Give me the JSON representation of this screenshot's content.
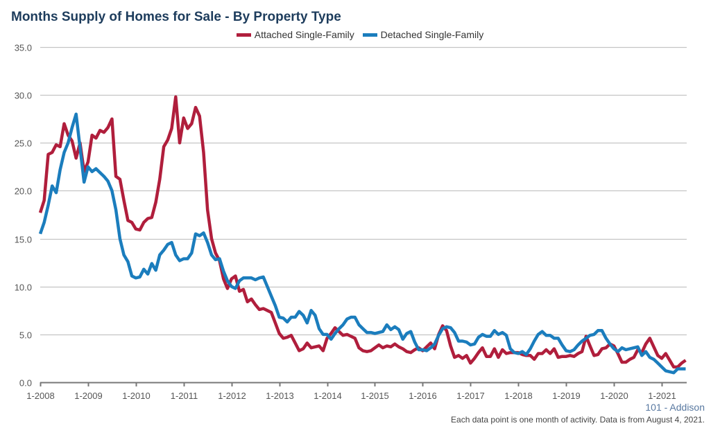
{
  "chart_data": {
    "type": "line",
    "title": "Months Supply of Homes for Sale - By Property Type",
    "x_start": "1-2008",
    "x_end": "7-2021",
    "x_frequency": "monthly",
    "xticks": [
      "1-2008",
      "1-2009",
      "1-2010",
      "1-2011",
      "1-2012",
      "1-2013",
      "1-2014",
      "1-2015",
      "1-2016",
      "1-2017",
      "1-2018",
      "1-2019",
      "1-2020",
      "1-2021"
    ],
    "yticks": [
      "0.0",
      "5.0",
      "10.0",
      "15.0",
      "20.0",
      "25.0",
      "30.0",
      "35.0"
    ],
    "ylim": [
      0,
      35
    ],
    "grid": true,
    "legend_position": "top-center",
    "series": [
      {
        "name": "Attached Single-Family",
        "color": "#b01e3c",
        "values": [
          17.7,
          19.0,
          23.8,
          24.0,
          24.8,
          24.6,
          27.0,
          25.8,
          25.2,
          23.4,
          25.0,
          22.0,
          23.0,
          25.8,
          25.5,
          26.3,
          26.1,
          26.6,
          27.5,
          21.5,
          21.2,
          19.0,
          16.9,
          16.7,
          16.0,
          15.9,
          16.7,
          17.1,
          17.2,
          18.8,
          21.2,
          24.6,
          25.3,
          26.5,
          29.8,
          25.0,
          27.6,
          26.5,
          27.0,
          28.7,
          27.8,
          24.0,
          18.0,
          15.0,
          13.5,
          12.7,
          10.8,
          9.8,
          10.8,
          11.1,
          9.5,
          9.7,
          8.4,
          8.7,
          8.1,
          7.6,
          7.7,
          7.5,
          7.3,
          6.2,
          5.1,
          4.6,
          4.7,
          4.9,
          4.1,
          3.3,
          3.5,
          4.1,
          3.6,
          3.7,
          3.8,
          3.3,
          4.6,
          5.1,
          5.7,
          5.3,
          4.9,
          5.0,
          4.8,
          4.6,
          3.6,
          3.3,
          3.2,
          3.3,
          3.6,
          3.9,
          3.6,
          3.8,
          3.7,
          4.0,
          3.7,
          3.5,
          3.2,
          3.1,
          3.4,
          3.6,
          3.3,
          3.7,
          4.1,
          3.5,
          5.0,
          5.9,
          5.4,
          3.8,
          2.6,
          2.8,
          2.5,
          2.8,
          2.0,
          2.5,
          3.1,
          3.6,
          2.7,
          2.7,
          3.5,
          2.6,
          3.4,
          3.0,
          3.1,
          3.1,
          3.1,
          2.9,
          2.8,
          2.8,
          2.4,
          3.0,
          3.0,
          3.4,
          3.0,
          3.5,
          2.6,
          2.7,
          2.7,
          2.8,
          2.7,
          3.0,
          3.2,
          4.8,
          3.8,
          2.8,
          2.9,
          3.5,
          3.6,
          4.0,
          3.8,
          3.0,
          2.1,
          2.1,
          2.4,
          2.6,
          3.4,
          3.1,
          4.0,
          4.6,
          3.7,
          2.8,
          2.5,
          3.0,
          2.3,
          1.6,
          1.6,
          2.0,
          2.3
        ]
      },
      {
        "name": "Detached Single-Family",
        "color": "#1b7dbd",
        "values": [
          15.5,
          16.7,
          18.5,
          20.5,
          19.8,
          22.2,
          24.0,
          25.0,
          26.6,
          28.0,
          24.5,
          20.9,
          22.5,
          22.0,
          22.3,
          21.9,
          21.5,
          21.0,
          20.0,
          18.0,
          15.0,
          13.3,
          12.6,
          11.1,
          10.9,
          11.0,
          11.8,
          11.3,
          12.4,
          11.7,
          13.3,
          13.8,
          14.4,
          14.6,
          13.3,
          12.7,
          12.9,
          12.9,
          13.5,
          15.5,
          15.3,
          15.6,
          14.6,
          13.3,
          12.8,
          12.9,
          11.6,
          10.6,
          10.0,
          9.8,
          10.6,
          10.9,
          10.9,
          10.9,
          10.7,
          10.9,
          11.0,
          10.0,
          9.0,
          8.0,
          6.8,
          6.7,
          6.3,
          6.8,
          6.8,
          7.4,
          7.0,
          6.2,
          7.5,
          7.0,
          5.6,
          5.0,
          5.0,
          4.5,
          5.1,
          5.6,
          6.0,
          6.6,
          6.8,
          6.8,
          6.0,
          5.6,
          5.2,
          5.2,
          5.1,
          5.2,
          5.3,
          6.0,
          5.5,
          5.8,
          5.5,
          4.5,
          5.1,
          5.3,
          4.2,
          3.4,
          3.4,
          3.3,
          3.6,
          4.0,
          4.9,
          5.6,
          5.8,
          5.7,
          5.2,
          4.3,
          4.3,
          4.2,
          3.9,
          4.0,
          4.7,
          5.0,
          4.8,
          4.8,
          5.4,
          5.0,
          5.2,
          4.9,
          3.5,
          3.1,
          3.0,
          3.2,
          2.9,
          3.5,
          4.3,
          5.0,
          5.3,
          4.9,
          4.9,
          4.6,
          4.6,
          3.9,
          3.3,
          3.2,
          3.4,
          3.9,
          4.3,
          4.6,
          4.9,
          5.0,
          5.4,
          5.4,
          4.6,
          4.0,
          3.5,
          3.2,
          3.6,
          3.4,
          3.5,
          3.6,
          3.7,
          2.8,
          3.2,
          2.6,
          2.4,
          2.0,
          1.6,
          1.2,
          1.1,
          1.0,
          1.4,
          1.4,
          1.4
        ]
      }
    ]
  },
  "footer": {
    "region": "101 - Addison",
    "note": "Each data point is one month of activity. Data is from August 4, 2021."
  }
}
